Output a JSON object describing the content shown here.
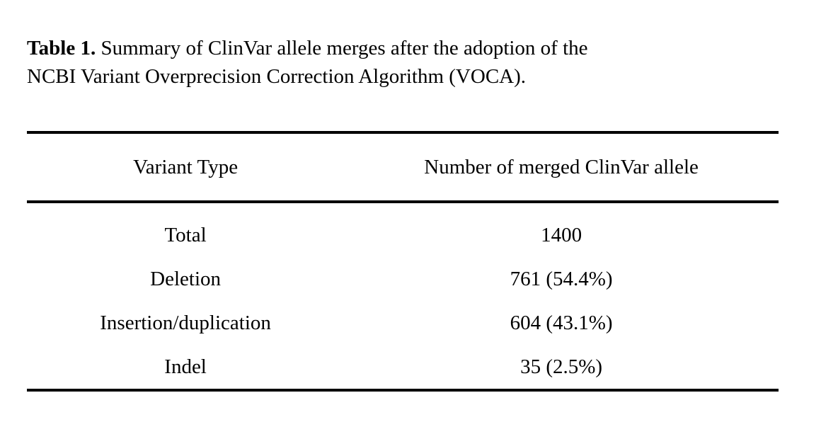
{
  "caption": {
    "label": "Table 1.",
    "line1": "Summary of ClinVar allele merges after the adoption of the",
    "line2": "NCBI Variant Overprecision Correction Algorithm (VOCA)."
  },
  "table": {
    "columns": [
      "Variant Type",
      "Number of merged ClinVar allele"
    ],
    "rows": [
      {
        "variant_type": "Total",
        "count": "1400"
      },
      {
        "variant_type": "Deletion",
        "count": "761 (54.4%)"
      },
      {
        "variant_type": "Insertion/duplication",
        "count": "604 (43.1%)"
      },
      {
        "variant_type": "Indel",
        "count": "35 (2.5%)"
      }
    ]
  },
  "colors": {
    "text": "#000000",
    "background": "#ffffff",
    "rule": "#000000"
  }
}
